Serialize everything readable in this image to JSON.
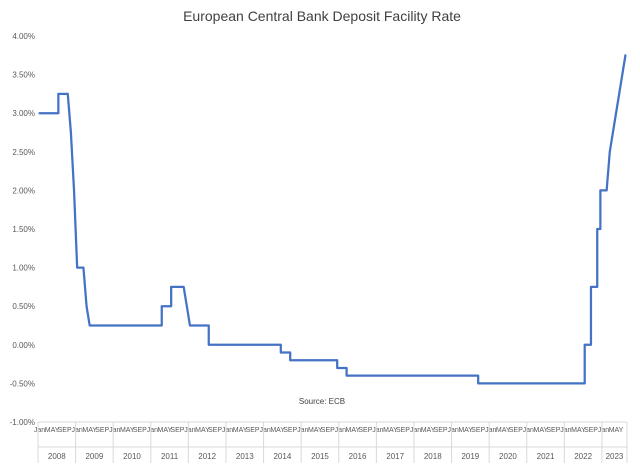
{
  "chart_data": {
    "type": "line",
    "title": "European Central Bank Deposit Facility Rate",
    "source": "Source: ECB",
    "xlabel": "",
    "ylabel": "",
    "y_unit": "%",
    "ylim": [
      -1.0,
      4.0
    ],
    "yticks": [
      "-1.00%",
      "-0.50%",
      "0.00%",
      "0.50%",
      "1.00%",
      "1.50%",
      "2.00%",
      "2.50%",
      "3.00%",
      "3.50%",
      "4.00%"
    ],
    "xlim": [
      "2008-01",
      "2023-08"
    ],
    "month_tick_labels": [
      "Jan",
      "MAY",
      "SEP"
    ],
    "years": [
      "2008",
      "2009",
      "2010",
      "2011",
      "2012",
      "2013",
      "2014",
      "2015",
      "2016",
      "2017",
      "2018",
      "2019",
      "2020",
      "2021",
      "2022",
      "2023"
    ],
    "grid": false,
    "line_color": "#4472c4",
    "series": [
      {
        "name": "",
        "points": [
          [
            "2008-01",
            3.0
          ],
          [
            "2008-07",
            3.0
          ],
          [
            "2008-07",
            3.25
          ],
          [
            "2008-10",
            3.25
          ],
          [
            "2008-11",
            2.75
          ],
          [
            "2008-12",
            2.0
          ],
          [
            "2009-01",
            1.0
          ],
          [
            "2009-03",
            1.0
          ],
          [
            "2009-04",
            0.5
          ],
          [
            "2009-05",
            0.25
          ],
          [
            "2011-04",
            0.25
          ],
          [
            "2011-04",
            0.5
          ],
          [
            "2011-07",
            0.5
          ],
          [
            "2011-07",
            0.75
          ],
          [
            "2011-11",
            0.75
          ],
          [
            "2011-12",
            0.5
          ],
          [
            "2012-01",
            0.25
          ],
          [
            "2012-07",
            0.25
          ],
          [
            "2012-07",
            0.0
          ],
          [
            "2014-06",
            0.0
          ],
          [
            "2014-06",
            -0.1
          ],
          [
            "2014-09",
            -0.1
          ],
          [
            "2014-09",
            -0.2
          ],
          [
            "2015-12",
            -0.2
          ],
          [
            "2015-12",
            -0.3
          ],
          [
            "2016-03",
            -0.3
          ],
          [
            "2016-03",
            -0.4
          ],
          [
            "2019-09",
            -0.4
          ],
          [
            "2019-09",
            -0.5
          ],
          [
            "2022-07",
            -0.5
          ],
          [
            "2022-07",
            0.0
          ],
          [
            "2022-09",
            0.0
          ],
          [
            "2022-09",
            0.75
          ],
          [
            "2022-11",
            0.75
          ],
          [
            "2022-11",
            1.5
          ],
          [
            "2022-12",
            1.5
          ],
          [
            "2022-12",
            2.0
          ],
          [
            "2023-02",
            2.0
          ],
          [
            "2023-03",
            2.5
          ],
          [
            "2023-05",
            3.0
          ],
          [
            "2023-06",
            3.25
          ],
          [
            "2023-07",
            3.5
          ],
          [
            "2023-08",
            3.75
          ]
        ]
      }
    ]
  }
}
